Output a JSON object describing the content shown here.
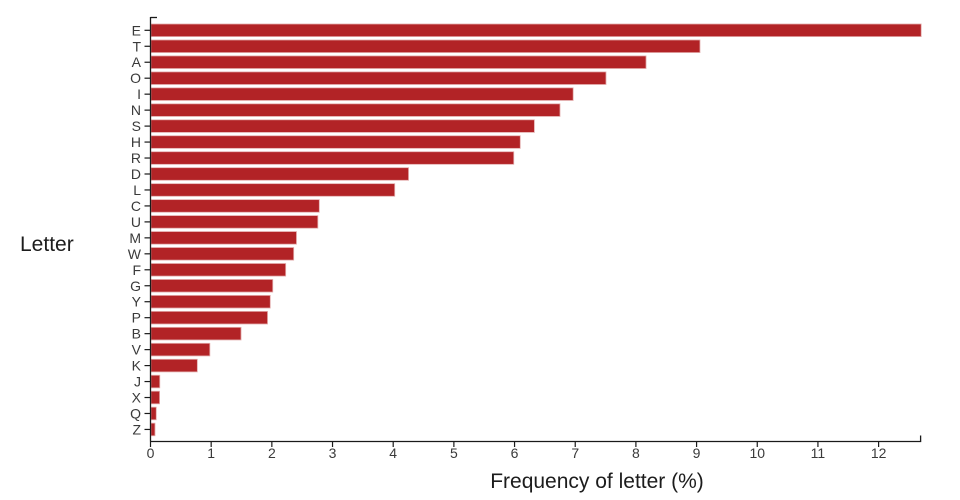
{
  "figure": {
    "background": "#ffffff"
  },
  "chart_data": {
    "type": "bar",
    "orientation": "horizontal",
    "title": "",
    "xlabel": "Frequency of letter (%)",
    "ylabel": "Letter",
    "categories": [
      "E",
      "T",
      "A",
      "O",
      "I",
      "N",
      "S",
      "H",
      "R",
      "D",
      "L",
      "C",
      "U",
      "M",
      "W",
      "F",
      "G",
      "Y",
      "P",
      "B",
      "V",
      "K",
      "J",
      "X",
      "Q",
      "Z"
    ],
    "values": [
      12.702,
      9.056,
      8.167,
      7.507,
      6.966,
      6.749,
      6.327,
      6.094,
      5.987,
      4.253,
      4.025,
      2.782,
      2.758,
      2.406,
      2.36,
      2.228,
      2.015,
      1.974,
      1.929,
      1.492,
      0.978,
      0.772,
      0.153,
      0.15,
      0.095,
      0.074
    ],
    "xlim": [
      0,
      12.702
    ],
    "xticks": [
      0,
      1,
      2,
      3,
      4,
      5,
      6,
      7,
      8,
      9,
      10,
      11,
      12
    ],
    "grid": false,
    "legend": "none",
    "bar_color": "#B22326",
    "bar_edge_color": "#E3ACAC",
    "axis_color": "#1a1a1a",
    "tick_label_color": "#3a3a3a",
    "title_color": "#1c1c1c"
  }
}
